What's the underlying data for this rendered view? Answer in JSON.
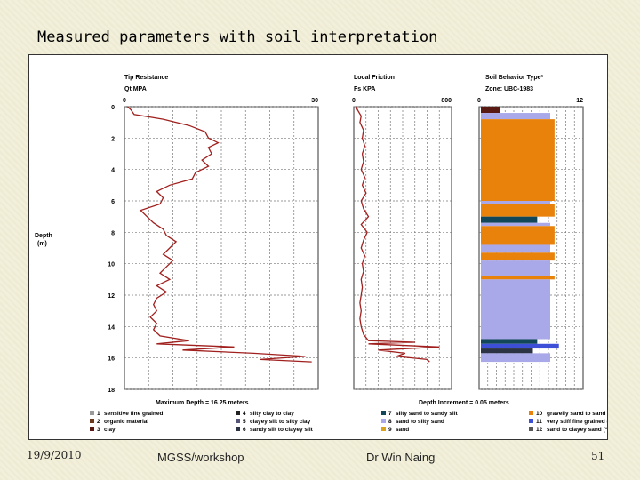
{
  "slide": {
    "title": "Measured parameters with soil interpretation",
    "footer_date": "19/9/2010",
    "footer_center": "MGSS/workshop",
    "footer_author": "Dr Win Naing",
    "page_number": "51"
  },
  "chart_data": {
    "type": "line",
    "depth_axis": {
      "label": "Depth",
      "unit": "(m)",
      "range": [
        0,
        18
      ],
      "ticks": [
        0,
        2,
        4,
        6,
        8,
        10,
        12,
        14,
        16,
        18
      ]
    },
    "max_depth_note": "Maximum Depth = 16.25 meters",
    "depth_increment_note": "Depth Increment = 0.05 meters",
    "panels": [
      {
        "title": "Tip Resistance",
        "unit": "Qt MPA",
        "xlim": [
          0,
          30
        ],
        "tick_labels": [
          "0",
          "30"
        ],
        "series_color": "#a0201e",
        "depth": [
          0.0,
          0.2,
          0.5,
          0.8,
          1.2,
          1.6,
          2.0,
          2.3,
          2.6,
          3.0,
          3.4,
          3.8,
          4.2,
          4.6,
          5.0,
          5.4,
          5.8,
          6.2,
          6.6,
          7.0,
          7.4,
          7.8,
          8.2,
          8.6,
          9.0,
          9.4,
          9.8,
          10.2,
          10.6,
          11.0,
          11.4,
          11.8,
          12.2,
          12.6,
          13.0,
          13.4,
          13.8,
          14.2,
          14.6,
          14.9,
          15.1,
          15.3,
          15.5,
          15.7,
          15.9,
          16.1,
          16.25
        ],
        "values": [
          0.5,
          1.0,
          1.5,
          6.0,
          10.0,
          12.5,
          13.0,
          14.5,
          13.0,
          13.5,
          12.0,
          13.0,
          11.0,
          10.5,
          7.0,
          5.0,
          6.0,
          5.5,
          2.5,
          3.5,
          4.5,
          6.0,
          6.5,
          8.0,
          7.0,
          6.0,
          7.5,
          6.5,
          5.5,
          7.0,
          5.0,
          6.5,
          5.0,
          4.5,
          5.0,
          4.0,
          5.0,
          4.5,
          5.5,
          10.0,
          5.0,
          17.0,
          9.0,
          20.0,
          28.0,
          21.0,
          29.0
        ]
      },
      {
        "title": "Local Friction",
        "unit": "Fs KPA",
        "xlim": [
          0,
          800
        ],
        "tick_labels": [
          "0",
          "800"
        ],
        "series_color": "#a0201e",
        "depth": [
          0.0,
          0.2,
          0.6,
          1.0,
          1.5,
          2.0,
          2.5,
          3.0,
          3.5,
          4.0,
          4.5,
          5.0,
          5.5,
          6.0,
          6.5,
          7.0,
          7.5,
          8.0,
          8.5,
          9.0,
          9.5,
          10.0,
          10.5,
          11.0,
          11.5,
          12.0,
          12.5,
          13.0,
          13.5,
          14.0,
          14.5,
          14.9,
          15.0,
          15.1,
          15.3,
          15.5,
          15.7,
          15.9,
          16.1,
          16.25
        ],
        "values": [
          20,
          30,
          60,
          50,
          80,
          70,
          90,
          70,
          80,
          60,
          90,
          70,
          100,
          60,
          80,
          120,
          60,
          110,
          80,
          60,
          90,
          70,
          80,
          60,
          70,
          60,
          50,
          60,
          50,
          60,
          80,
          120,
          500,
          120,
          700,
          200,
          420,
          350,
          600,
          620
        ]
      },
      {
        "title": "Soil Behavior Type*",
        "unit": "Zone: UBC-1983",
        "xlim": [
          0,
          12
        ],
        "tick_labels": [
          "0",
          "12"
        ],
        "layers": [
          {
            "top": 0.0,
            "bottom": 0.4,
            "zone": 3
          },
          {
            "top": 0.4,
            "bottom": 0.8,
            "zone": 8
          },
          {
            "top": 0.8,
            "bottom": 6.0,
            "zone": 10
          },
          {
            "top": 6.0,
            "bottom": 6.2,
            "zone": 8
          },
          {
            "top": 6.2,
            "bottom": 7.0,
            "zone": 10
          },
          {
            "top": 7.0,
            "bottom": 7.4,
            "zone": 7
          },
          {
            "top": 7.4,
            "bottom": 7.6,
            "zone": 8
          },
          {
            "top": 7.6,
            "bottom": 8.8,
            "zone": 10
          },
          {
            "top": 8.8,
            "bottom": 9.3,
            "zone": 8
          },
          {
            "top": 9.3,
            "bottom": 9.8,
            "zone": 10
          },
          {
            "top": 9.8,
            "bottom": 10.8,
            "zone": 8
          },
          {
            "top": 10.8,
            "bottom": 11.0,
            "zone": 10
          },
          {
            "top": 11.0,
            "bottom": 14.8,
            "zone": 8
          },
          {
            "top": 14.8,
            "bottom": 15.1,
            "zone": 7
          },
          {
            "top": 15.1,
            "bottom": 15.4,
            "zone": 11
          },
          {
            "top": 15.4,
            "bottom": 15.7,
            "zone": 6
          },
          {
            "top": 15.7,
            "bottom": 16.25,
            "zone": 8
          }
        ],
        "zone_values": {
          "3": 2.2,
          "6": 6.0,
          "7": 6.5,
          "8": 8.0,
          "10": 8.5,
          "11": 9.0
        }
      }
    ],
    "legend": [
      {
        "zone": "1",
        "label": "sensitive fine grained",
        "color": "#9a9a9a"
      },
      {
        "zone": "2",
        "label": "organic material",
        "color": "#6b3a1e"
      },
      {
        "zone": "3",
        "label": "clay",
        "color": "#5a1a14"
      },
      {
        "zone": "4",
        "label": "silty clay to clay",
        "color": "#222222"
      },
      {
        "zone": "5",
        "label": "clayey silt to silty clay",
        "color": "#555577"
      },
      {
        "zone": "6",
        "label": "sandy silt to clayey silt",
        "color": "#2b3344"
      },
      {
        "zone": "7",
        "label": "silty sand to sandy silt",
        "color": "#12475a"
      },
      {
        "zone": "8",
        "label": "sand to silty sand",
        "color": "#a9a8e8"
      },
      {
        "zone": "9",
        "label": "sand",
        "color": "#d9a520"
      },
      {
        "zone": "10",
        "label": "gravelly sand to sand",
        "color": "#e8820a"
      },
      {
        "zone": "11",
        "label": "very stiff fine grained (*)",
        "color": "#3c4fd6"
      },
      {
        "zone": "12",
        "label": "sand to clayey sand (*)",
        "color": "#555555"
      }
    ]
  }
}
